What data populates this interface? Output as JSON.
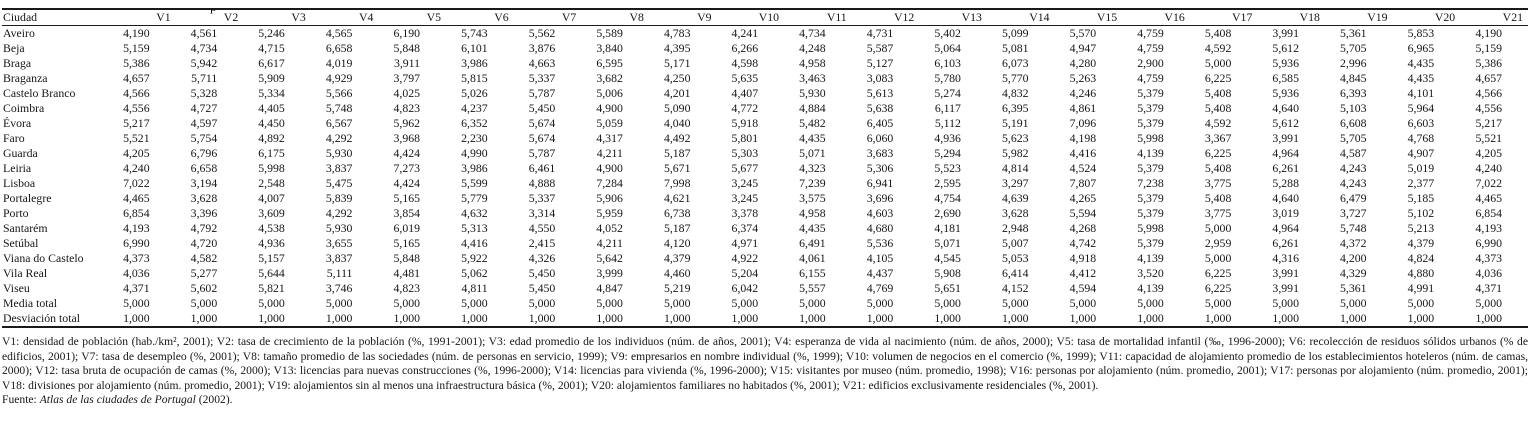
{
  "caption_fragment": "p",
  "table": {
    "city_column_header": "Ciudad",
    "variable_headers": [
      "V1",
      "V2",
      "V3",
      "V4",
      "V5",
      "V6",
      "V7",
      "V8",
      "V9",
      "V10",
      "V11",
      "V12",
      "V13",
      "V14",
      "V15",
      "V16",
      "V17",
      "V18",
      "V19",
      "V20",
      "V21"
    ],
    "rows": [
      {
        "city": "Aveiro",
        "values": [
          "4,190",
          "4,561",
          "5,246",
          "4,565",
          "6,190",
          "5,743",
          "5,562",
          "5,589",
          "4,783",
          "4,241",
          "4,734",
          "4,731",
          "5,402",
          "5,099",
          "5,570",
          "4,759",
          "5,408",
          "3,991",
          "5,361",
          "5,853",
          "4,190"
        ]
      },
      {
        "city": "Beja",
        "values": [
          "5,159",
          "4,734",
          "4,715",
          "6,658",
          "5,848",
          "6,101",
          "3,876",
          "3,840",
          "4,395",
          "6,266",
          "4,248",
          "5,587",
          "5,064",
          "5,081",
          "4,947",
          "4,759",
          "4,592",
          "5,612",
          "5,705",
          "6,965",
          "5,159"
        ]
      },
      {
        "city": "Braga",
        "values": [
          "5,386",
          "5,942",
          "6,617",
          "4,019",
          "3,911",
          "3,986",
          "4,663",
          "6,595",
          "5,171",
          "4,598",
          "4,958",
          "5,127",
          "6,103",
          "6,073",
          "4,280",
          "2,900",
          "5,000",
          "5,936",
          "2,996",
          "4,435",
          "5,386"
        ]
      },
      {
        "city": "Braganza",
        "values": [
          "4,657",
          "5,711",
          "5,909",
          "4,929",
          "3,797",
          "5,815",
          "5,337",
          "3,682",
          "4,250",
          "5,635",
          "3,463",
          "3,083",
          "5,780",
          "5,770",
          "5,263",
          "4,759",
          "6,225",
          "6,585",
          "4,845",
          "4,435",
          "4,657"
        ]
      },
      {
        "city": "Castelo Branco",
        "values": [
          "4,566",
          "5,328",
          "5,334",
          "5,566",
          "4,025",
          "5,026",
          "5,787",
          "5,006",
          "4,201",
          "4,407",
          "5,930",
          "5,613",
          "5,274",
          "4,832",
          "4,246",
          "5,379",
          "5,408",
          "5,936",
          "6,393",
          "4,101",
          "4,566"
        ]
      },
      {
        "city": "Coimbra",
        "values": [
          "4,556",
          "4,727",
          "4,405",
          "5,748",
          "4,823",
          "4,237",
          "5,450",
          "4,900",
          "5,090",
          "4,772",
          "4,884",
          "5,638",
          "6,117",
          "6,395",
          "4,861",
          "5,379",
          "5,408",
          "4,640",
          "5,103",
          "5,964",
          "4,556"
        ]
      },
      {
        "city": "Évora",
        "values": [
          "5,217",
          "4,597",
          "4,450",
          "6,567",
          "5,962",
          "6,352",
          "5,674",
          "5,059",
          "4,040",
          "5,918",
          "5,482",
          "6,405",
          "5,112",
          "5,191",
          "7,096",
          "5,379",
          "4,592",
          "5,612",
          "6,608",
          "6,603",
          "5,217"
        ]
      },
      {
        "city": "Faro",
        "values": [
          "5,521",
          "5,754",
          "4,892",
          "4,292",
          "3,968",
          "2,230",
          "5,674",
          "4,317",
          "4,492",
          "5,801",
          "4,435",
          "6,060",
          "4,936",
          "5,623",
          "4,198",
          "5,998",
          "3,367",
          "3,991",
          "5,705",
          "4,768",
          "5,521"
        ]
      },
      {
        "city": "Guarda",
        "values": [
          "4,205",
          "6,796",
          "6,175",
          "5,930",
          "4,424",
          "4,990",
          "5,787",
          "4,211",
          "5,187",
          "5,303",
          "5,071",
          "3,683",
          "5,294",
          "5,982",
          "4,416",
          "4,139",
          "6,225",
          "4,964",
          "4,587",
          "4,907",
          "4,205"
        ]
      },
      {
        "city": "Leiria",
        "values": [
          "4,240",
          "6,658",
          "5,998",
          "3,837",
          "7,273",
          "3,986",
          "6,461",
          "4,900",
          "5,671",
          "5,677",
          "4,323",
          "5,306",
          "5,523",
          "4,814",
          "4,524",
          "5,379",
          "5,408",
          "6,261",
          "4,243",
          "5,019",
          "4,240"
        ]
      },
      {
        "city": "Lisboa",
        "values": [
          "7,022",
          "3,194",
          "2,548",
          "5,475",
          "4,424",
          "5,599",
          "4,888",
          "7,284",
          "7,998",
          "3,245",
          "7,239",
          "6,941",
          "2,595",
          "3,297",
          "7,807",
          "7,238",
          "3,775",
          "5,288",
          "4,243",
          "2,377",
          "7,022"
        ]
      },
      {
        "city": "Portalegre",
        "values": [
          "4,465",
          "3,628",
          "4,007",
          "5,839",
          "5,165",
          "5,779",
          "5,337",
          "5,906",
          "4,621",
          "3,245",
          "3,575",
          "3,696",
          "4,754",
          "4,639",
          "4,265",
          "5,379",
          "5,408",
          "4,640",
          "6,479",
          "5,185",
          "4,465"
        ]
      },
      {
        "city": "Porto",
        "values": [
          "6,854",
          "3,396",
          "3,609",
          "4,292",
          "3,854",
          "4,632",
          "3,314",
          "5,959",
          "6,738",
          "3,378",
          "4,958",
          "4,603",
          "2,690",
          "3,628",
          "5,594",
          "5,379",
          "3,775",
          "3,019",
          "3,727",
          "5,102",
          "6,854"
        ]
      },
      {
        "city": "Santarém",
        "values": [
          "4,193",
          "4,792",
          "4,538",
          "5,930",
          "6,019",
          "5,313",
          "4,550",
          "4,052",
          "5,187",
          "6,374",
          "4,435",
          "4,680",
          "4,181",
          "2,948",
          "4,268",
          "5,998",
          "5,000",
          "4,964",
          "5,748",
          "5,213",
          "4,193"
        ]
      },
      {
        "city": "Setúbal",
        "values": [
          "6,990",
          "4,720",
          "4,936",
          "3,655",
          "5,165",
          "4,416",
          "2,415",
          "4,211",
          "4,120",
          "4,971",
          "6,491",
          "5,536",
          "5,071",
          "5,007",
          "4,742",
          "5,379",
          "2,959",
          "6,261",
          "4,372",
          "4,379",
          "6,990"
        ]
      },
      {
        "city": "Viana do Castelo",
        "values": [
          "4,373",
          "4,582",
          "5,157",
          "3,837",
          "5,848",
          "5,922",
          "4,326",
          "5,642",
          "4,379",
          "4,922",
          "4,061",
          "4,105",
          "4,545",
          "5,053",
          "4,918",
          "4,139",
          "5,000",
          "4,316",
          "4,200",
          "4,824",
          "4,373"
        ]
      },
      {
        "city": "Vila Real",
        "values": [
          "4,036",
          "5,277",
          "5,644",
          "5,111",
          "4,481",
          "5,062",
          "5,450",
          "3,999",
          "4,460",
          "5,204",
          "6,155",
          "4,437",
          "5,908",
          "6,414",
          "4,412",
          "3,520",
          "6,225",
          "3,991",
          "4,329",
          "4,880",
          "4,036"
        ]
      },
      {
        "city": "Viseu",
        "values": [
          "4,371",
          "5,602",
          "5,821",
          "3,746",
          "4,823",
          "4,811",
          "5,450",
          "4,847",
          "5,219",
          "6,042",
          "5,557",
          "4,769",
          "5,651",
          "4,152",
          "4,594",
          "4,139",
          "6,225",
          "3,991",
          "5,361",
          "4,991",
          "4,371"
        ]
      },
      {
        "city": "Media total",
        "values": [
          "5,000",
          "5,000",
          "5,000",
          "5,000",
          "5,000",
          "5,000",
          "5,000",
          "5,000",
          "5,000",
          "5,000",
          "5,000",
          "5,000",
          "5,000",
          "5,000",
          "5,000",
          "5,000",
          "5,000",
          "5,000",
          "5,000",
          "5,000",
          "5,000"
        ]
      },
      {
        "city": "Desviación total",
        "values": [
          "1,000",
          "1,000",
          "1,000",
          "1,000",
          "1,000",
          "1,000",
          "1,000",
          "1,000",
          "1,000",
          "1,000",
          "1,000",
          "1,000",
          "1,000",
          "1,000",
          "1,000",
          "1,000",
          "1,000",
          "1,000",
          "1,000",
          "1,000",
          "1,000"
        ]
      }
    ]
  },
  "notes": {
    "text": "V1: densidad de población (hab./km², 2001); V2: tasa de crecimiento de la población (%, 1991-2001); V3: edad promedio de los individuos (núm. de años, 2001); V4: esperanza de vida al nacimiento (núm. de años, 2000); V5: tasa de mortalidad infantil (‰, 1996-2000); V6: recolección de residuos sólidos urbanos (% de edificios, 2001); V7: tasa de desempleo (%, 2001); V8: tamaño promedio de las sociedades (núm. de personas en servicio, 1999); V9: empresarios en nombre individual (%, 1999); V10: volumen de negocios en el comercio (%, 1999); V11: capacidad de alojamiento promedio de los establecimientos hoteleros (núm. de camas, 2000); V12: tasa bruta de ocupación de camas (%, 2000); V13: licencias para nuevas construcciones (%, 1996-2000); V14: licencias para vivienda (%, 1996-2000); V15: visitantes por museo (núm. promedio, 1998); V16: personas por alojamiento (núm. promedio, 2001); V17: personas por alojamiento (núm. promedio, 2001); V18: divisiones por alojamiento (núm. promedio, 2001); V19: alojamientos sin al menos una infraestructura básica (%, 2001); V20: alojamientos familiares no habitados (%, 2001); V21: edificios exclusivamente residenciales (%, 2001)."
  },
  "fuente": {
    "label": "Fuente: ",
    "title": "Atlas de las ciudades de Portugal",
    "suffix": " (2002)."
  }
}
